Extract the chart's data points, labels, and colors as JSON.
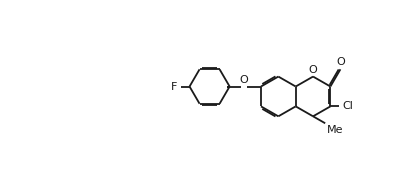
{
  "bg_color": "#ffffff",
  "line_color": "#1a1a1a",
  "lw": 1.3,
  "fs": 8.0,
  "bl": 0.62,
  "figw": 4.17,
  "figh": 1.84,
  "dpi": 100,
  "xlim": [
    0,
    10
  ],
  "ylim": [
    0,
    4.42
  ],
  "label_O": "O",
  "label_Cl": "Cl",
  "label_F": "F"
}
